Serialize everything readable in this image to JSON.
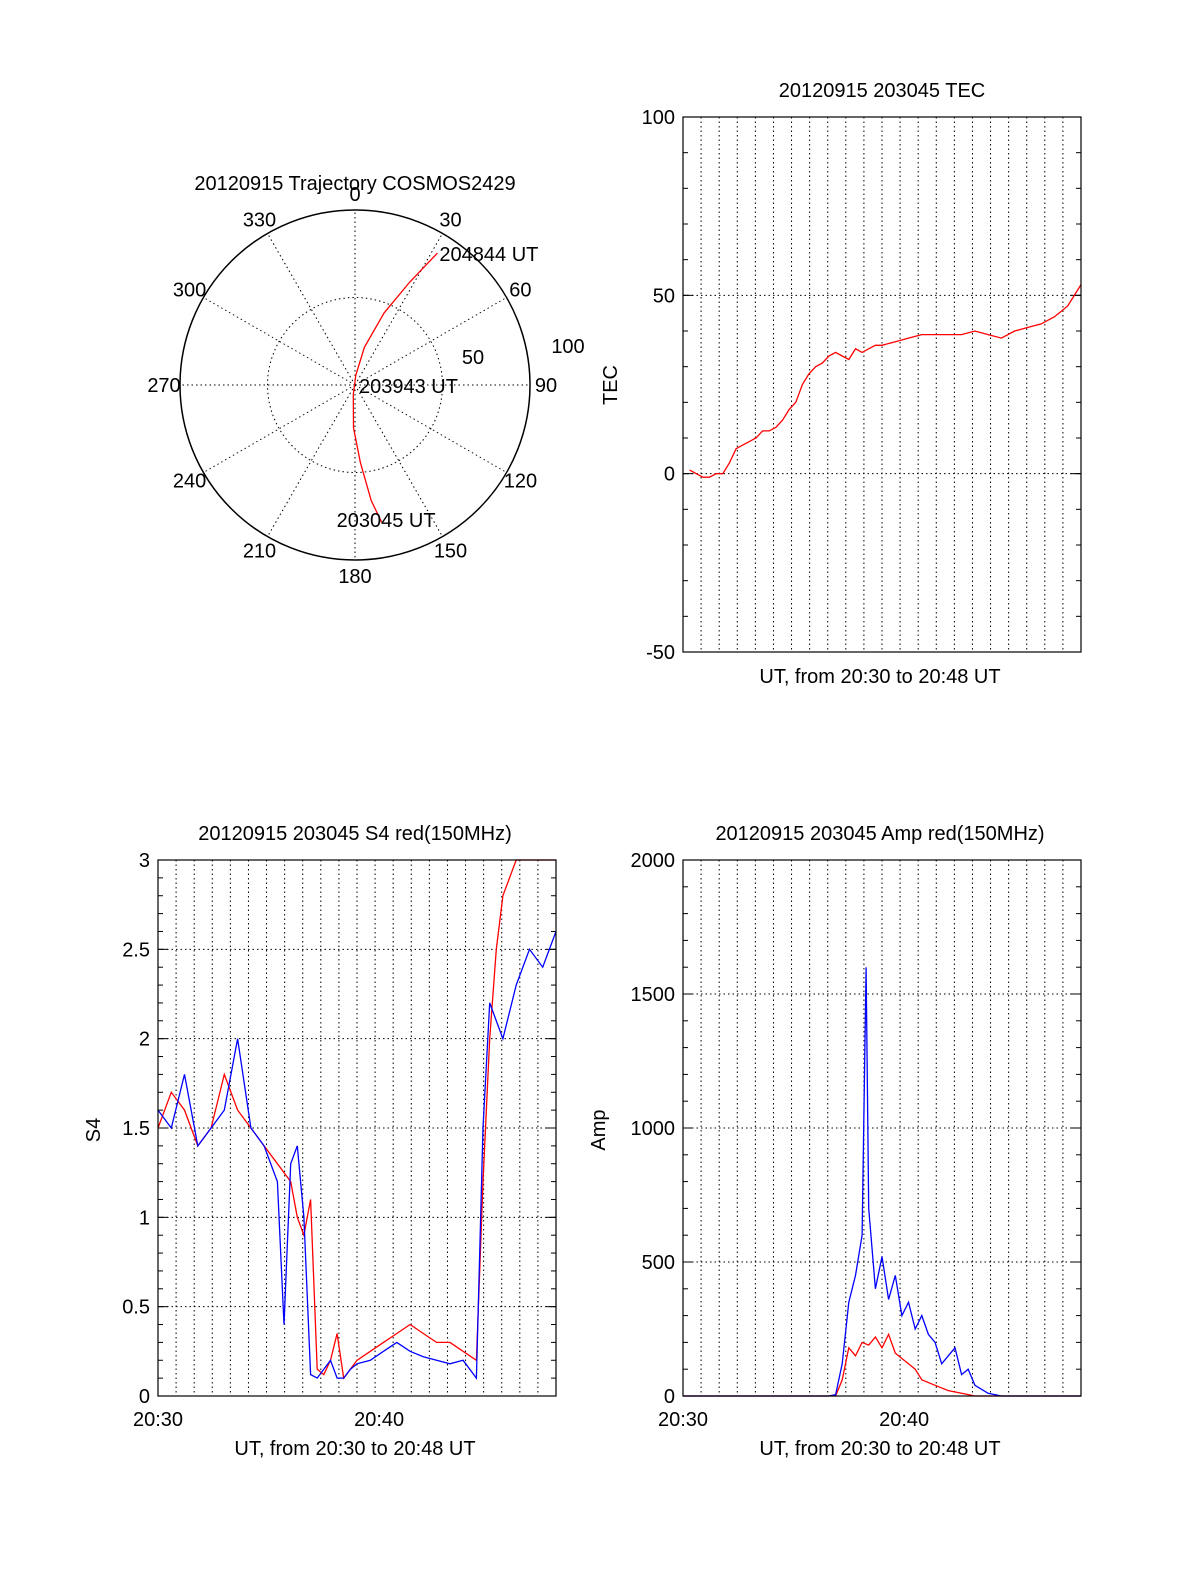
{
  "chart_data": [
    {
      "type": "polar",
      "title": "20120915 Trajectory COSMOS2429",
      "angle_labels": [
        "0",
        "30",
        "60",
        "90",
        "120",
        "150",
        "180",
        "210",
        "240",
        "270",
        "300",
        "330"
      ],
      "radial_labels": [
        "50",
        "100"
      ],
      "annotations": [
        {
          "text": "204844 UT",
          "az": 32,
          "el": 10
        },
        {
          "text": "203943 UT",
          "az": 90,
          "el": 90
        },
        {
          "text": "203045 UT",
          "az": 170,
          "el": 20
        }
      ],
      "trajectory": {
        "color": "#ff0000",
        "points": [
          [
            32,
            10
          ],
          [
            28,
            30
          ],
          [
            22,
            50
          ],
          [
            14,
            70
          ],
          [
            5,
            85
          ],
          [
            190,
            85
          ],
          [
            182,
            68
          ],
          [
            176,
            50
          ],
          [
            172,
            30
          ],
          [
            169,
            18
          ]
        ]
      }
    },
    {
      "type": "line",
      "title": "20120915 203045 TEC",
      "xlabel": "UT, from 20:30 to 20:48 UT",
      "ylabel": "TEC",
      "xlim": [
        20.5,
        20.8
      ],
      "ylim": [
        -50,
        100
      ],
      "yticks": [
        "-50",
        "0",
        "50",
        "100"
      ],
      "xticks": [],
      "series": [
        {
          "color": "#ff0000",
          "x": [
            20.505,
            20.51,
            20.515,
            20.52,
            20.525,
            20.53,
            20.535,
            20.54,
            20.545,
            20.55,
            20.555,
            20.56,
            20.565,
            20.57,
            20.575,
            20.58,
            20.585,
            20.59,
            20.595,
            20.6,
            20.605,
            20.61,
            20.615,
            20.62,
            20.625,
            20.63,
            20.635,
            20.64,
            20.645,
            20.65,
            20.66,
            20.67,
            20.68,
            20.69,
            20.7,
            20.71,
            20.72,
            20.73,
            20.74,
            20.75,
            20.76,
            20.77,
            20.78,
            20.79,
            20.8
          ],
          "y": [
            1,
            0,
            -1,
            -1,
            0,
            0,
            3,
            7,
            8,
            9,
            10,
            12,
            12,
            13,
            15,
            18,
            20,
            25,
            28,
            30,
            31,
            33,
            34,
            33,
            32,
            35,
            34,
            35,
            36,
            36,
            37,
            38,
            39,
            39,
            39,
            39,
            40,
            39,
            38,
            40,
            41,
            42,
            44,
            47,
            53
          ]
        }
      ]
    },
    {
      "type": "line",
      "title": "20120915 203045 S4 red(150MHz)",
      "xlabel": "UT, from 20:30 to 20:48 UT",
      "ylabel": "S4",
      "xlim": [
        20.5,
        20.8
      ],
      "ylim": [
        0,
        3
      ],
      "yticks": [
        "0",
        "0.5",
        "1",
        "1.5",
        "2",
        "2.5",
        "3"
      ],
      "xticks": [
        "20:30",
        "20:40"
      ],
      "series": [
        {
          "color": "#ff0000",
          "x": [
            20.5,
            20.51,
            20.52,
            20.53,
            20.54,
            20.55,
            20.56,
            20.57,
            20.58,
            20.59,
            20.6,
            20.605,
            20.61,
            20.615,
            20.62,
            20.625,
            20.63,
            20.635,
            20.64,
            20.645,
            20.65,
            20.66,
            20.67,
            20.68,
            20.69,
            20.7,
            20.71,
            20.72,
            20.73,
            20.74,
            20.745,
            20.75,
            20.755,
            20.76,
            20.77,
            20.78,
            20.79,
            20.8
          ],
          "y": [
            1.5,
            1.7,
            1.6,
            1.4,
            1.5,
            1.8,
            1.6,
            1.5,
            1.4,
            1.3,
            1.2,
            1.0,
            0.9,
            1.1,
            0.15,
            0.12,
            0.2,
            0.35,
            0.1,
            0.15,
            0.2,
            0.25,
            0.3,
            0.35,
            0.4,
            0.35,
            0.3,
            0.3,
            0.25,
            0.2,
            1.2,
            2.0,
            2.5,
            2.8,
            3.0,
            3.0,
            3.0,
            3.0
          ]
        },
        {
          "color": "#0000ff",
          "x": [
            20.5,
            20.51,
            20.52,
            20.53,
            20.54,
            20.55,
            20.56,
            20.57,
            20.58,
            20.59,
            20.595,
            20.6,
            20.605,
            20.61,
            20.615,
            20.62,
            20.625,
            20.63,
            20.635,
            20.64,
            20.645,
            20.65,
            20.66,
            20.67,
            20.68,
            20.69,
            20.7,
            20.71,
            20.72,
            20.73,
            20.74,
            20.745,
            20.75,
            20.76,
            20.77,
            20.78,
            20.79,
            20.8
          ],
          "y": [
            1.6,
            1.5,
            1.8,
            1.4,
            1.5,
            1.6,
            2.0,
            1.5,
            1.4,
            1.2,
            0.4,
            1.3,
            1.4,
            1.0,
            0.12,
            0.1,
            0.15,
            0.2,
            0.1,
            0.1,
            0.15,
            0.18,
            0.2,
            0.25,
            0.3,
            0.25,
            0.22,
            0.2,
            0.18,
            0.2,
            0.1,
            1.5,
            2.2,
            2.0,
            2.3,
            2.5,
            2.4,
            2.6
          ]
        }
      ]
    },
    {
      "type": "line",
      "title": "20120915 203045 Amp red(150MHz)",
      "xlabel": "UT, from 20:30 to 20:48 UT",
      "ylabel": "Amp",
      "xlim": [
        20.5,
        20.8
      ],
      "ylim": [
        0,
        2000
      ],
      "yticks": [
        "0",
        "500",
        "1000",
        "1500",
        "2000"
      ],
      "xticks": [
        "20:30",
        "20:40"
      ],
      "series": [
        {
          "color": "#ff0000",
          "x": [
            20.5,
            20.55,
            20.6,
            20.61,
            20.615,
            20.62,
            20.625,
            20.63,
            20.635,
            20.64,
            20.645,
            20.65,
            20.655,
            20.66,
            20.665,
            20.67,
            20.675,
            20.68,
            20.69,
            20.7,
            20.71,
            20.72,
            20.73,
            20.74,
            20.8
          ],
          "y": [
            0,
            0,
            0,
            0,
            0,
            60,
            180,
            150,
            200,
            190,
            220,
            180,
            230,
            160,
            140,
            120,
            100,
            60,
            40,
            20,
            10,
            0,
            0,
            0,
            0
          ]
        },
        {
          "color": "#0000ff",
          "x": [
            20.5,
            20.55,
            20.6,
            20.61,
            20.615,
            20.62,
            20.625,
            20.63,
            20.635,
            20.638,
            20.64,
            20.645,
            20.65,
            20.655,
            20.66,
            20.665,
            20.67,
            20.675,
            20.68,
            20.685,
            20.69,
            20.695,
            20.7,
            20.705,
            20.71,
            20.715,
            20.72,
            20.73,
            20.74,
            20.8
          ],
          "y": [
            0,
            0,
            0,
            0,
            5,
            120,
            350,
            450,
            600,
            1600,
            700,
            400,
            520,
            360,
            450,
            300,
            350,
            250,
            300,
            230,
            200,
            120,
            150,
            180,
            80,
            100,
            40,
            10,
            0,
            0
          ]
        }
      ]
    }
  ]
}
